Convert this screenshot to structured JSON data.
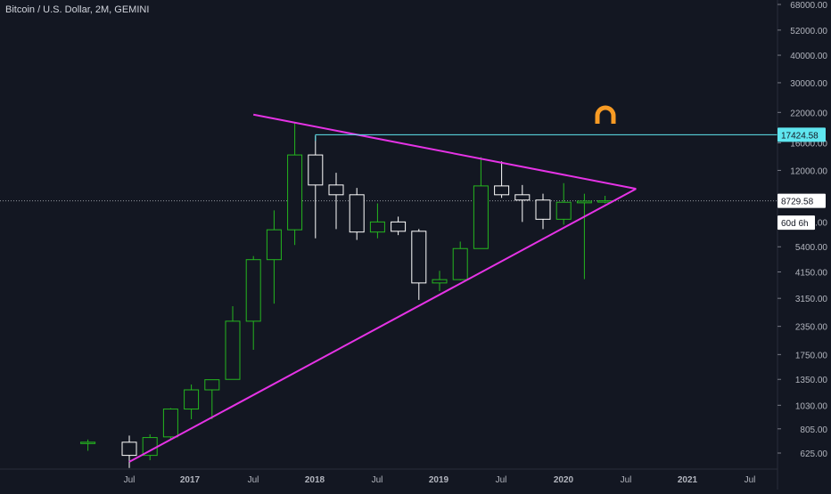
{
  "header": {
    "symbol_title": "Bitcoin / U.S. Dollar, 2M, GEMINI"
  },
  "colors": {
    "background": "#131722",
    "up_candle": "#25b61f",
    "down_candle": "#ffffff",
    "trendline": "#e533e5",
    "resistance_line": "#5fe6f0",
    "axis_text": "#b2b5be",
    "price_label_bg": "#ffffff"
  },
  "icons": {
    "watermark": "magnet-icon"
  },
  "chart_data": {
    "type": "candlestick",
    "title": "Bitcoin / U.S. Dollar, 2M, GEMINI",
    "y_scale": "log",
    "ylim": [
      535,
      72000
    ],
    "y_ticks": [
      "68000.00",
      "52000.00",
      "40000.00",
      "30000.00",
      "22000.00",
      "16000.00",
      "12000.00",
      "7000.00",
      "5400.00",
      "4150.00",
      "3150.00",
      "2350.00",
      "1750.00",
      "1350.00",
      "1030.00",
      "805.00",
      "625.00"
    ],
    "x_ticks": [
      "Jul",
      "2017",
      "Jul",
      "2018",
      "Jul",
      "2019",
      "Jul",
      "2020",
      "Jul",
      "2021",
      "Jul"
    ],
    "candles": [
      {
        "date": "2016-03",
        "open": 700,
        "high": 720,
        "low": 640,
        "close": 700
      },
      {
        "date": "2016-07",
        "open": 700,
        "high": 750,
        "low": 535,
        "close": 610
      },
      {
        "date": "2016-09",
        "open": 610,
        "high": 760,
        "low": 580,
        "close": 735
      },
      {
        "date": "2016-11",
        "open": 740,
        "high": 1000,
        "low": 720,
        "close": 990
      },
      {
        "date": "2017-01",
        "open": 990,
        "high": 1280,
        "low": 890,
        "close": 1210
      },
      {
        "date": "2017-03",
        "open": 1210,
        "high": 1340,
        "low": 890,
        "close": 1345
      },
      {
        "date": "2017-05",
        "open": 1350,
        "high": 2900,
        "low": 1350,
        "close": 2480
      },
      {
        "date": "2017-07",
        "open": 2480,
        "high": 4900,
        "low": 1840,
        "close": 4720
      },
      {
        "date": "2017-09",
        "open": 4720,
        "high": 7900,
        "low": 2980,
        "close": 6450
      },
      {
        "date": "2017-11",
        "open": 6450,
        "high": 19800,
        "low": 5500,
        "close": 14100
      },
      {
        "date": "2018-01",
        "open": 14100,
        "high": 17200,
        "low": 5900,
        "close": 10300
      },
      {
        "date": "2018-03",
        "open": 10300,
        "high": 11700,
        "low": 6500,
        "close": 9300
      },
      {
        "date": "2018-05",
        "open": 9300,
        "high": 9990,
        "low": 5800,
        "close": 6300
      },
      {
        "date": "2018-07",
        "open": 6300,
        "high": 8500,
        "low": 5900,
        "close": 7000
      },
      {
        "date": "2018-09",
        "open": 7000,
        "high": 7400,
        "low": 6100,
        "close": 6350
      },
      {
        "date": "2018-11",
        "open": 6350,
        "high": 6500,
        "low": 3100,
        "close": 3700
      },
      {
        "date": "2019-01",
        "open": 3700,
        "high": 4200,
        "low": 3400,
        "close": 3830
      },
      {
        "date": "2019-03",
        "open": 3830,
        "high": 5700,
        "low": 3800,
        "close": 5300
      },
      {
        "date": "2019-05",
        "open": 5300,
        "high": 13800,
        "low": 5300,
        "close": 10200
      },
      {
        "date": "2019-07",
        "open": 10200,
        "high": 13200,
        "low": 9000,
        "close": 9300
      },
      {
        "date": "2019-09",
        "open": 9300,
        "high": 10300,
        "low": 7000,
        "close": 8800
      },
      {
        "date": "2019-11",
        "open": 8800,
        "high": 9400,
        "low": 6500,
        "close": 7200
      },
      {
        "date": "2020-01",
        "open": 7200,
        "high": 10500,
        "low": 6800,
        "close": 8600
      },
      {
        "date": "2020-03",
        "open": 8550,
        "high": 9400,
        "low": 3850,
        "close": 8700
      },
      {
        "date": "2020-05",
        "open": 8650,
        "high": 9200,
        "low": 8500,
        "close": 8730
      }
    ],
    "annotations": [
      {
        "type": "trendline",
        "name": "upper-trendline",
        "from": {
          "date": "2017-07",
          "price": 21500
        },
        "to": {
          "date": "2020-08",
          "price": 9900
        }
      },
      {
        "type": "trendline",
        "name": "lower-trendline",
        "from": {
          "date": "2016-07",
          "price": 570
        },
        "to": {
          "date": "2020-08",
          "price": 9900
        }
      },
      {
        "type": "horizontal_ray",
        "name": "resistance-ray",
        "from": {
          "date": "2018-01",
          "price": 17424.58
        },
        "price": 17424.58
      }
    ],
    "price_labels": [
      {
        "name": "resistance-price-label",
        "text": "17424.58",
        "price": 17424.58,
        "style": "cyan"
      },
      {
        "name": "current-price-label",
        "text": "8729.58",
        "price": 8729.58,
        "style": "white"
      },
      {
        "name": "countdown-label",
        "text": "60d 6h",
        "price": 6950,
        "style": "white"
      }
    ]
  }
}
